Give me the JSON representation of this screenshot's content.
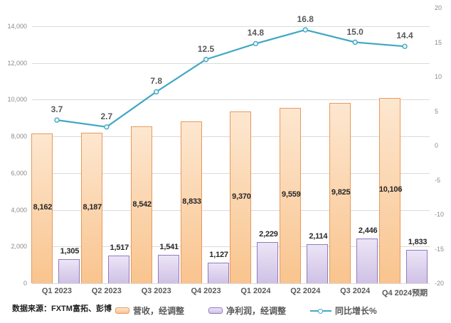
{
  "source_note": "数据来源：FXTM富拓、彭博",
  "chart_data": {
    "type": "bar+line combo",
    "title": "",
    "categories": [
      "Q1 2023",
      "Q2 2023",
      "Q3 2023",
      "Q4 2023",
      "Q1 2024",
      "Q2 2024",
      "Q3 2024",
      "Q4 2024预期"
    ],
    "series": [
      {
        "name": "营收，经调整",
        "type": "bar",
        "axis": "left",
        "values": [
          8162,
          8187,
          8542,
          8833,
          9370,
          9559,
          9825,
          10106
        ],
        "labels": [
          "8,162",
          "8,187",
          "8,542",
          "8,833",
          "9,370",
          "9,559",
          "9,825",
          "10,106"
        ],
        "fill_light": "#FDE7D0",
        "fill": "#F9C48E",
        "border": "#E8995C",
        "label_placement": "inside-center"
      },
      {
        "name": "净利润，经调整",
        "type": "bar",
        "axis": "left",
        "values": [
          1305,
          1517,
          1541,
          1127,
          2229,
          2114,
          2446,
          1833
        ],
        "labels": [
          "1,305",
          "1,517",
          "1,541",
          "1,127",
          "2,229",
          "2,114",
          "2,446",
          "1,833"
        ],
        "fill_light": "#ECE5F6",
        "fill": "#CFC1E5",
        "border": "#9279BE",
        "label_placement": "outside-end"
      },
      {
        "name": "同比增长%",
        "type": "line",
        "axis": "right",
        "values": [
          3.7,
          2.7,
          7.8,
          12.5,
          14.8,
          16.8,
          15.0,
          14.4
        ],
        "labels": [
          "3.7",
          "2.7",
          "7.8",
          "12.5",
          "14.8",
          "16.8",
          "15.0",
          "14.4"
        ],
        "color": "#41A8C4",
        "marker": "open-circle",
        "label_placement": "above"
      }
    ],
    "left_axis": {
      "min": 0,
      "max": 15000,
      "tick_step": 2000,
      "ticks": [
        "0",
        "2,000",
        "4,000",
        "6,000",
        "8,000",
        "10,000",
        "12,000",
        "14,000"
      ]
    },
    "right_axis": {
      "min": -20,
      "max": 20,
      "tick_step": 5,
      "ticks": [
        "-20",
        "-15",
        "-10",
        "-5",
        "0",
        "5",
        "10",
        "15",
        "20"
      ]
    },
    "grid": true,
    "gridline_color": "#DADADA",
    "axis_text_color": "#8a8a8a",
    "legend_position": "bottom"
  }
}
